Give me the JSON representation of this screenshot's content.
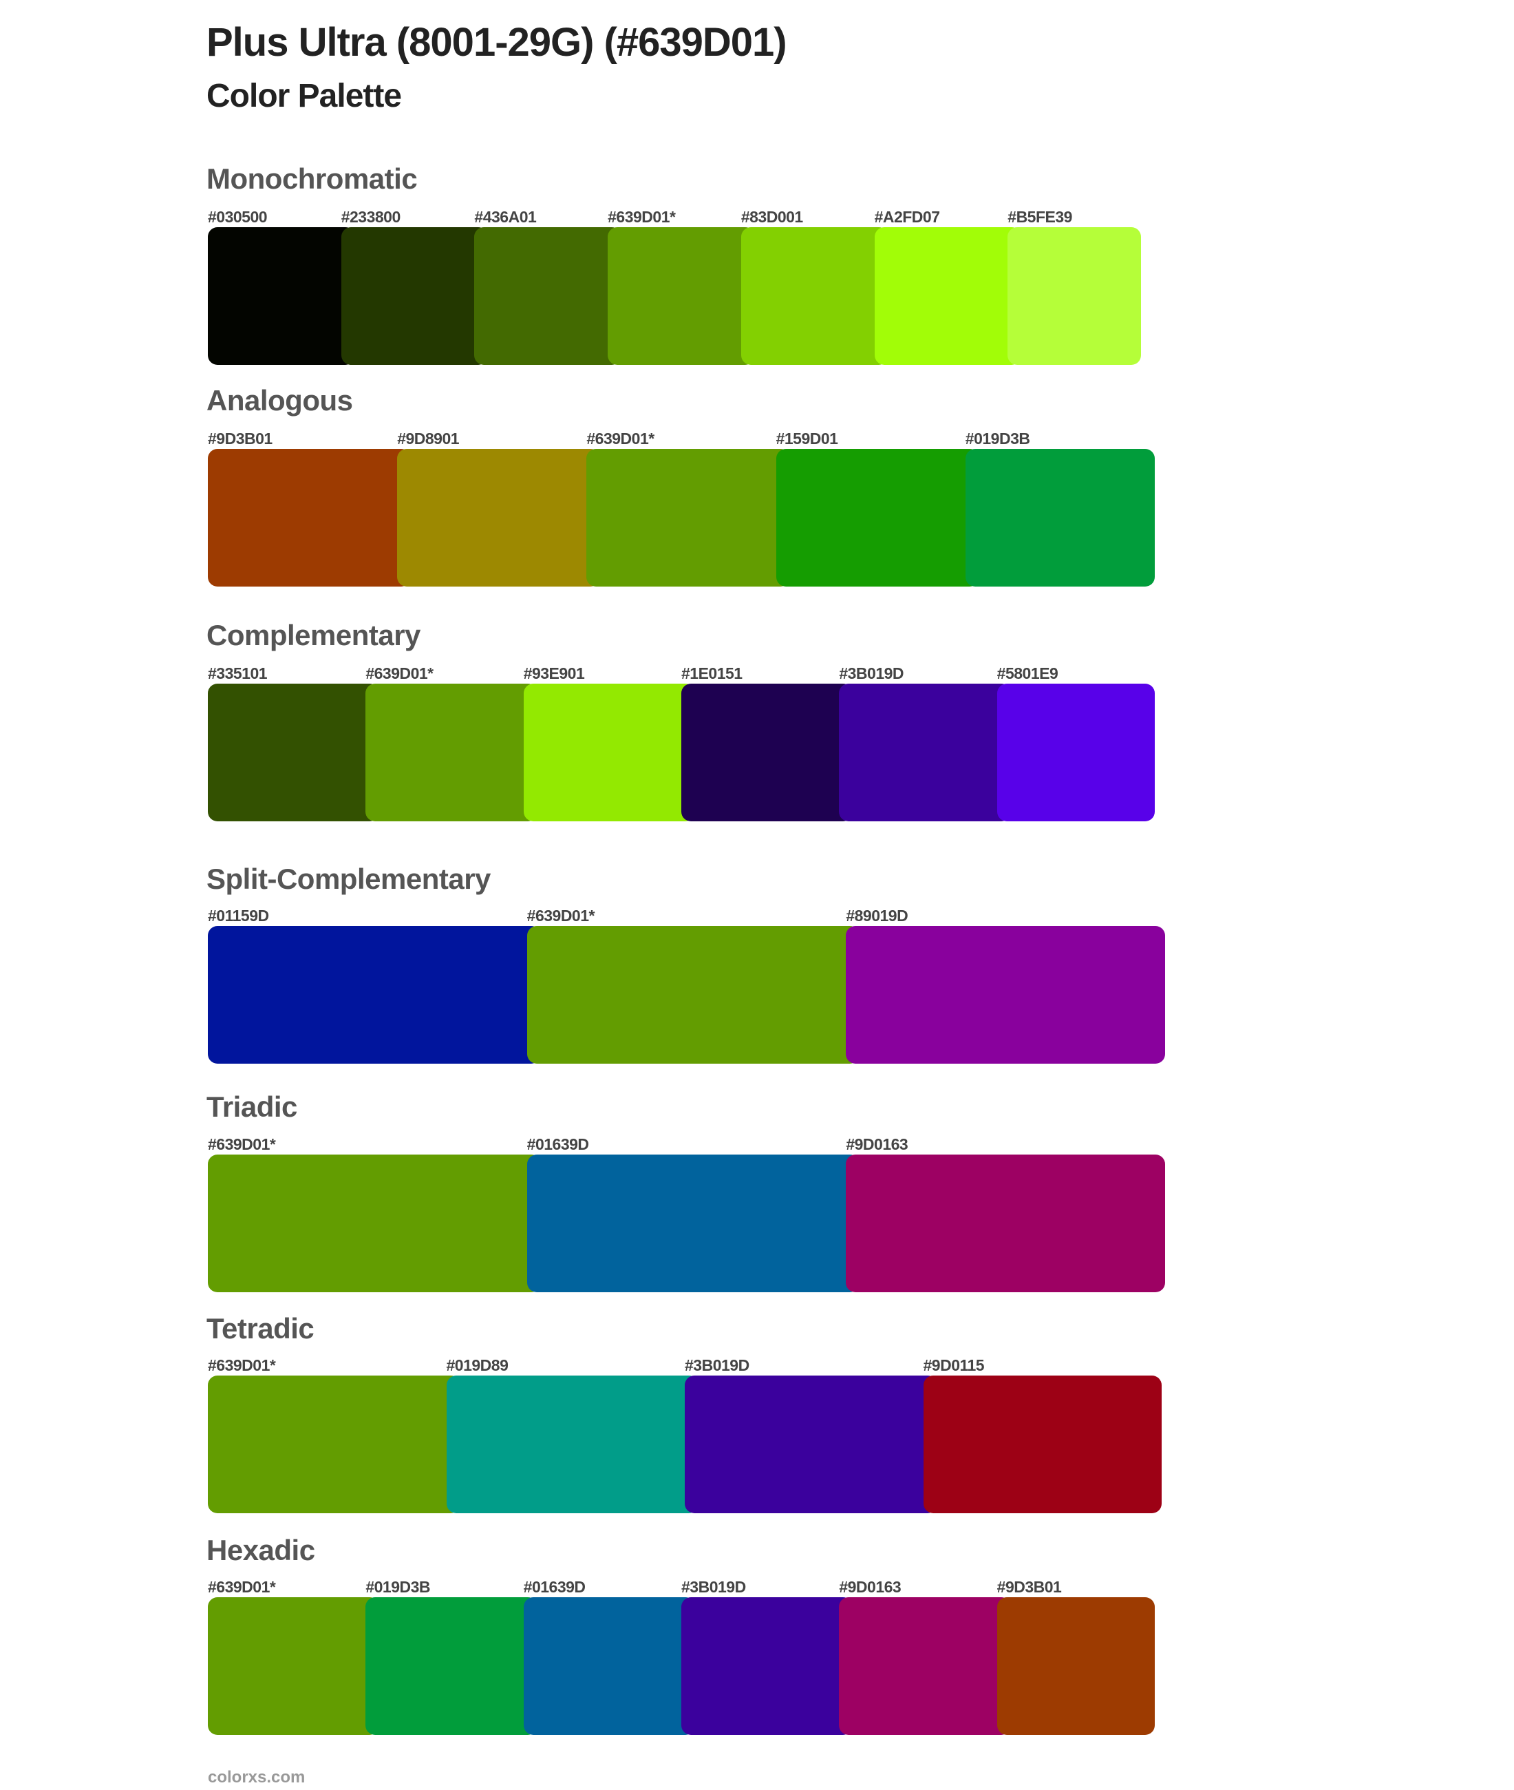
{
  "header": {
    "title": "Plus Ultra (8001-29G) (#639D01)",
    "subtitle": "Color Palette"
  },
  "sections": [
    {
      "name": "Monochromatic",
      "swatches": [
        {
          "label": "#030500",
          "color": "#030500"
        },
        {
          "label": "#233800",
          "color": "#233800"
        },
        {
          "label": "#436A01",
          "color": "#436A01"
        },
        {
          "label": "#639D01*",
          "color": "#639D01"
        },
        {
          "label": "#83D001",
          "color": "#83D001"
        },
        {
          "label": "#A2FD07",
          "color": "#A2FD07"
        },
        {
          "label": "#B5FE39",
          "color": "#B5FE39"
        }
      ]
    },
    {
      "name": "Analogous",
      "swatches": [
        {
          "label": "#9D3B01",
          "color": "#9D3B01"
        },
        {
          "label": "#9D8901",
          "color": "#9D8901"
        },
        {
          "label": "#639D01*",
          "color": "#639D01"
        },
        {
          "label": "#159D01",
          "color": "#159D01"
        },
        {
          "label": "#019D3B",
          "color": "#019D3B"
        }
      ]
    },
    {
      "name": "Complementary",
      "swatches": [
        {
          "label": "#335101",
          "color": "#335101"
        },
        {
          "label": "#639D01*",
          "color": "#639D01"
        },
        {
          "label": "#93E901",
          "color": "#93E901"
        },
        {
          "label": "#1E0151",
          "color": "#1E0151"
        },
        {
          "label": "#3B019D",
          "color": "#3B019D"
        },
        {
          "label": "#5801E9",
          "color": "#5801E9"
        }
      ]
    },
    {
      "name": "Split-Complementary",
      "swatches": [
        {
          "label": "#01159D",
          "color": "#01159D"
        },
        {
          "label": "#639D01*",
          "color": "#639D01"
        },
        {
          "label": "#89019D",
          "color": "#89019D"
        }
      ]
    },
    {
      "name": "Triadic",
      "swatches": [
        {
          "label": "#639D01*",
          "color": "#639D01"
        },
        {
          "label": "#01639D",
          "color": "#01639D"
        },
        {
          "label": "#9D0163",
          "color": "#9D0163"
        }
      ]
    },
    {
      "name": "Tetradic",
      "swatches": [
        {
          "label": "#639D01*",
          "color": "#639D01"
        },
        {
          "label": "#019D89",
          "color": "#019D89"
        },
        {
          "label": "#3B019D",
          "color": "#3B019D"
        },
        {
          "label": "#9D0115",
          "color": "#9D0115"
        }
      ]
    },
    {
      "name": "Hexadic",
      "swatches": [
        {
          "label": "#639D01*",
          "color": "#639D01"
        },
        {
          "label": "#019D3B",
          "color": "#019D3B"
        },
        {
          "label": "#01639D",
          "color": "#01639D"
        },
        {
          "label": "#3B019D",
          "color": "#3B019D"
        },
        {
          "label": "#9D0163",
          "color": "#9D0163"
        },
        {
          "label": "#9D3B01",
          "color": "#9D3B01"
        }
      ]
    }
  ],
  "footer": {
    "text": "colorxs.com"
  }
}
